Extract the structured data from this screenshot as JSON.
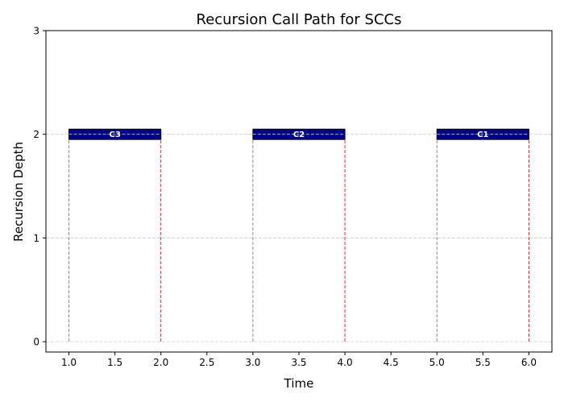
{
  "chart_data": {
    "type": "bar",
    "title": "Recursion Call Path for SCCs",
    "xlabel": "Time",
    "ylabel": "Recursion Depth",
    "xlim": [
      0.75,
      6.25
    ],
    "ylim": [
      -0.1,
      3
    ],
    "xticks": [
      1.0,
      1.5,
      2.0,
      2.5,
      3.0,
      3.5,
      4.0,
      4.5,
      5.0,
      5.5,
      6.0
    ],
    "xtick_labels": [
      "1.0",
      "1.5",
      "2.0",
      "2.5",
      "3.0",
      "3.5",
      "4.0",
      "4.5",
      "5.0",
      "5.5",
      "6.0"
    ],
    "yticks": [
      0,
      1,
      2,
      3
    ],
    "ytick_labels": [
      "0",
      "1",
      "2",
      "3"
    ],
    "grid": "y-dashed",
    "bars": [
      {
        "label": "C3",
        "start": 1.0,
        "end": 2.0,
        "depth": 2
      },
      {
        "label": "C2",
        "start": 3.0,
        "end": 4.0,
        "depth": 2
      },
      {
        "label": "C1",
        "start": 5.0,
        "end": 6.0,
        "depth": 2
      }
    ],
    "colors": {
      "bar_fill": "#00008b",
      "bar_edge": "#000000",
      "bar_label": "#ffffff",
      "start_line": "#808080",
      "end_line": "#ff0000",
      "grid": "#c8c8c8"
    }
  }
}
